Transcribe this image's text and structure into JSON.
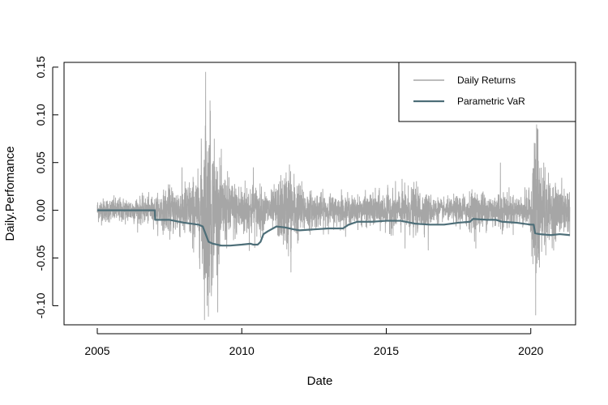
{
  "chart_data": {
    "type": "line",
    "title": "",
    "xlabel": "Date",
    "ylabel": "Daily.Perfomance",
    "xlim": [
      2003.85,
      2021.55
    ],
    "ylim": [
      -0.12,
      0.155
    ],
    "x_ticks": [
      2005,
      2010,
      2015,
      2020
    ],
    "x_tick_labels": [
      "2005",
      "2010",
      "2015",
      "2020"
    ],
    "y_ticks": [
      -0.1,
      -0.05,
      0.0,
      0.05,
      0.1,
      0.15
    ],
    "y_tick_labels": [
      "-0.10",
      "-0.05",
      "0.00",
      "0.05",
      "0.10",
      "0.15"
    ],
    "grid": false,
    "legend_position": "top-right",
    "series": [
      {
        "name": "Daily Returns",
        "color": "#a6a6a6",
        "kind": "daily-noise",
        "x_range": [
          2005.0,
          2021.35
        ],
        "volatility_profile": [
          [
            2005.0,
            0.006
          ],
          [
            2007.0,
            0.007
          ],
          [
            2007.5,
            0.012
          ],
          [
            2008.0,
            0.014
          ],
          [
            2008.5,
            0.018
          ],
          [
            2008.7,
            0.045
          ],
          [
            2008.85,
            0.05
          ],
          [
            2009.0,
            0.035
          ],
          [
            2009.3,
            0.02
          ],
          [
            2009.8,
            0.014
          ],
          [
            2010.3,
            0.015
          ],
          [
            2010.6,
            0.012
          ],
          [
            2011.0,
            0.009
          ],
          [
            2011.6,
            0.022
          ],
          [
            2011.9,
            0.016
          ],
          [
            2012.3,
            0.01
          ],
          [
            2013.0,
            0.008
          ],
          [
            2014.0,
            0.007
          ],
          [
            2015.5,
            0.011
          ],
          [
            2016.0,
            0.012
          ],
          [
            2016.5,
            0.008
          ],
          [
            2017.0,
            0.005
          ],
          [
            2018.0,
            0.01
          ],
          [
            2018.5,
            0.009
          ],
          [
            2019.0,
            0.01
          ],
          [
            2019.5,
            0.007
          ],
          [
            2020.0,
            0.01
          ],
          [
            2020.15,
            0.045
          ],
          [
            2020.35,
            0.03
          ],
          [
            2020.6,
            0.015
          ],
          [
            2021.35,
            0.011
          ]
        ],
        "spikes": [
          [
            2008.75,
            0.145
          ],
          [
            2008.8,
            -0.1
          ],
          [
            2008.9,
            0.115
          ],
          [
            2008.95,
            -0.09
          ],
          [
            2009.05,
            0.075
          ],
          [
            2008.3,
            -0.04
          ],
          [
            2008.6,
            0.06
          ],
          [
            2010.4,
            0.045
          ],
          [
            2011.65,
            0.048
          ],
          [
            2011.7,
            -0.065
          ],
          [
            2018.1,
            -0.04
          ],
          [
            2018.95,
            0.05
          ],
          [
            2020.17,
            -0.11
          ],
          [
            2020.2,
            0.09
          ],
          [
            2020.25,
            0.085
          ],
          [
            2020.3,
            -0.06
          ],
          [
            2020.45,
            0.05
          ],
          [
            2015.65,
            -0.04
          ],
          [
            2016.45,
            -0.042
          ],
          [
            2013.45,
            0.022
          ]
        ]
      },
      {
        "name": "Parametric VaR",
        "color": "#4d6e78",
        "x": [
          2005.0,
          2006.99,
          2007.0,
          2007.5,
          2008.0,
          2008.5,
          2008.65,
          2008.75,
          2008.85,
          2009.0,
          2009.3,
          2009.6,
          2010.0,
          2010.3,
          2010.4,
          2010.55,
          2010.65,
          2010.75,
          2010.9,
          2011.2,
          2011.5,
          2011.8,
          2012.0,
          2012.5,
          2013.0,
          2013.5,
          2013.7,
          2014.0,
          2014.5,
          2015.0,
          2015.5,
          2016.0,
          2016.5,
          2017.0,
          2017.5,
          2017.9,
          2018.0,
          2018.5,
          2018.8,
          2019.0,
          2019.5,
          2020.0,
          2020.1,
          2020.15,
          2020.3,
          2020.7,
          2021.0,
          2021.35
        ],
        "values": [
          0.0,
          0.0,
          -0.01,
          -0.01,
          -0.013,
          -0.015,
          -0.017,
          -0.025,
          -0.033,
          -0.035,
          -0.037,
          -0.037,
          -0.036,
          -0.035,
          -0.036,
          -0.036,
          -0.033,
          -0.025,
          -0.022,
          -0.017,
          -0.018,
          -0.02,
          -0.021,
          -0.02,
          -0.019,
          -0.019,
          -0.015,
          -0.012,
          -0.012,
          -0.011,
          -0.011,
          -0.014,
          -0.015,
          -0.015,
          -0.013,
          -0.012,
          -0.009,
          -0.01,
          -0.01,
          -0.012,
          -0.013,
          -0.015,
          -0.015,
          -0.024,
          -0.025,
          -0.026,
          -0.025,
          -0.026
        ]
      }
    ]
  }
}
